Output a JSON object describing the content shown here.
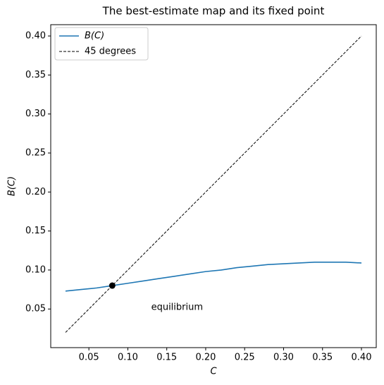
{
  "chart_data": {
    "type": "line",
    "title": "The best-estimate map and its fixed point",
    "x_label": "C",
    "y_label": "B(C)",
    "x": [
      0.02,
      0.04,
      0.06,
      0.08,
      0.1,
      0.12,
      0.14,
      0.16,
      0.18,
      0.2,
      0.22,
      0.24,
      0.26,
      0.28,
      0.3,
      0.32,
      0.34,
      0.36,
      0.38,
      0.4
    ],
    "series": [
      {
        "name": "B(C)",
        "color": "#1f77b4",
        "linestyle": "solid",
        "values": [
          0.073,
          0.075,
          0.077,
          0.08,
          0.083,
          0.086,
          0.089,
          0.092,
          0.095,
          0.098,
          0.1,
          0.103,
          0.105,
          0.107,
          0.108,
          0.109,
          0.11,
          0.11,
          0.11,
          0.109
        ]
      },
      {
        "name": "45 degrees",
        "color": "#000000",
        "linestyle": "dashed",
        "values": [
          0.02,
          0.04,
          0.06,
          0.08,
          0.1,
          0.12,
          0.14,
          0.16,
          0.18,
          0.2,
          0.22,
          0.24,
          0.26,
          0.28,
          0.3,
          0.32,
          0.34,
          0.36,
          0.38,
          0.4
        ]
      }
    ],
    "points": [
      {
        "x": 0.08,
        "y": 0.08,
        "color": "#000000"
      }
    ],
    "annotations": [
      {
        "text": "equilibrium",
        "x": 0.13,
        "y": 0.052
      }
    ],
    "xlim": [
      0.001,
      0.419
    ],
    "ylim": [
      0.0005,
      0.4145
    ],
    "xticks": [
      0.05,
      {
        "value": 0.1,
        "label": "0.10"
      },
      0.15,
      {
        "value": 0.2,
        "label": "0.20"
      },
      0.25,
      {
        "value": 0.3,
        "label": "0.30"
      },
      0.35,
      {
        "value": 0.4,
        "label": "0.40"
      }
    ],
    "yticks": [
      0.05,
      {
        "value": 0.1,
        "label": "0.10"
      },
      0.15,
      {
        "value": 0.2,
        "label": "0.20"
      },
      0.25,
      {
        "value": 0.3,
        "label": "0.30"
      },
      0.35,
      {
        "value": 0.4,
        "label": "0.40"
      }
    ],
    "grid": false,
    "legend": "upper left"
  }
}
